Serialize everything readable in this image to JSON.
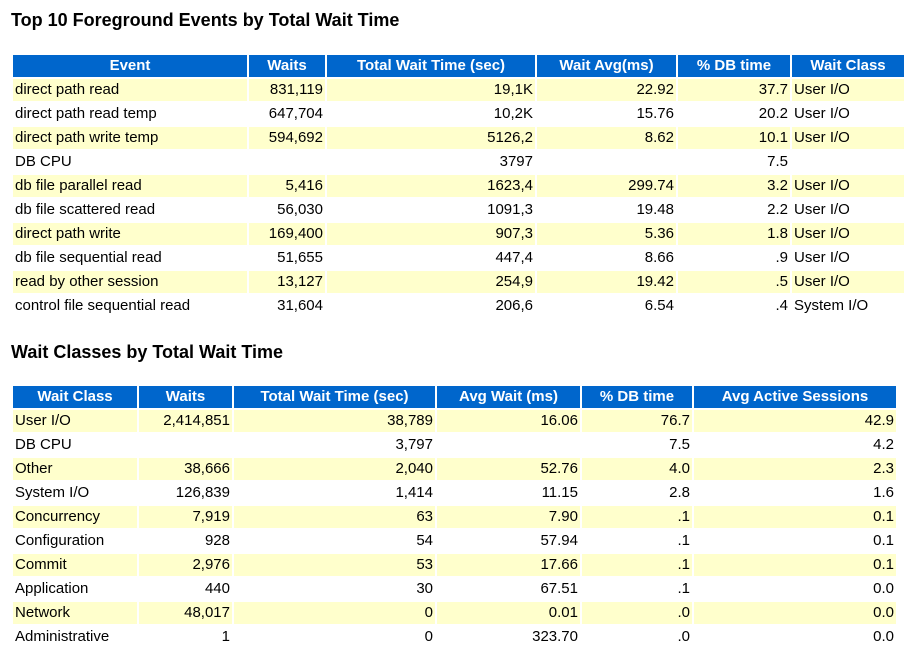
{
  "top_events": {
    "title": "Top 10 Foreground Events by Total Wait Time",
    "headers": [
      "Event",
      "Waits",
      "Total Wait Time (sec)",
      "Wait Avg(ms)",
      "% DB time",
      "Wait Class"
    ],
    "rows": [
      [
        "direct path read",
        "831,119",
        "19,1K",
        "22.92",
        "37.7",
        "User I/O"
      ],
      [
        "direct path read temp",
        "647,704",
        "10,2K",
        "15.76",
        "20.2",
        "User I/O"
      ],
      [
        "direct path write temp",
        "594,692",
        "5126,2",
        "8.62",
        "10.1",
        "User I/O"
      ],
      [
        "DB CPU",
        "",
        "3797",
        "",
        "7.5",
        ""
      ],
      [
        "db file parallel read",
        "5,416",
        "1623,4",
        "299.74",
        "3.2",
        "User I/O"
      ],
      [
        "db file scattered read",
        "56,030",
        "1091,3",
        "19.48",
        "2.2",
        "User I/O"
      ],
      [
        "direct path write",
        "169,400",
        "907,3",
        "5.36",
        "1.8",
        "User I/O"
      ],
      [
        "db file sequential read",
        "51,655",
        "447,4",
        "8.66",
        ".9",
        "User I/O"
      ],
      [
        "read by other session",
        "13,127",
        "254,9",
        "19.42",
        ".5",
        "User I/O"
      ],
      [
        "control file sequential read",
        "31,604",
        "206,6",
        "6.54",
        ".4",
        "System I/O"
      ]
    ]
  },
  "wait_classes": {
    "title": "Wait Classes by Total Wait Time",
    "headers": [
      "Wait Class",
      "Waits",
      "Total Wait Time (sec)",
      "Avg Wait (ms)",
      "% DB time",
      "Avg Active Sessions"
    ],
    "rows": [
      [
        "User I/O",
        "2,414,851",
        "38,789",
        "16.06",
        "76.7",
        "42.9"
      ],
      [
        "DB CPU",
        "",
        "3,797",
        "",
        "7.5",
        "4.2"
      ],
      [
        "Other",
        "38,666",
        "2,040",
        "52.76",
        "4.0",
        "2.3"
      ],
      [
        "System I/O",
        "126,839",
        "1,414",
        "11.15",
        "2.8",
        "1.6"
      ],
      [
        "Concurrency",
        "7,919",
        "63",
        "7.90",
        ".1",
        "0.1"
      ],
      [
        "Configuration",
        "928",
        "54",
        "57.94",
        ".1",
        "0.1"
      ],
      [
        "Commit",
        "2,976",
        "53",
        "17.66",
        ".1",
        "0.1"
      ],
      [
        "Application",
        "440",
        "30",
        "67.51",
        ".1",
        "0.0"
      ],
      [
        "Network",
        "48,017",
        "0",
        "0.01",
        ".0",
        "0.0"
      ],
      [
        "Administrative",
        "1",
        "0",
        "323.70",
        ".0",
        "0.0"
      ]
    ]
  }
}
